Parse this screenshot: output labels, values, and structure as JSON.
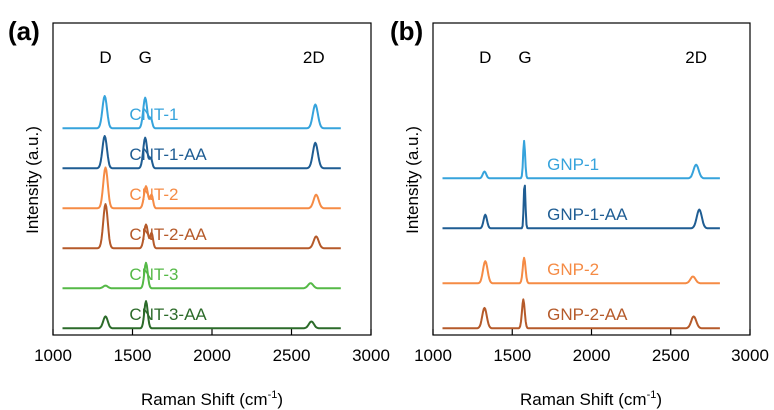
{
  "chart_data": [
    {
      "type": "line",
      "panel_label": "(a)",
      "xlabel": "Raman Shift (cm",
      "xlabel_sup": "-1",
      "xlabel_tail": ")",
      "ylabel": "Intensity (a.u.)",
      "xlim": [
        1000,
        3000
      ],
      "xticks": [
        "1000",
        "1500",
        "2000",
        "2500",
        "3000"
      ],
      "peak_labels": [
        {
          "text": "D",
          "x": 1330
        },
        {
          "text": "G",
          "x": 1580
        },
        {
          "text": "2D",
          "x": 2640
        }
      ],
      "series": [
        {
          "name": "CNT-1",
          "color": "#36a3dc",
          "offset": 5,
          "baseline": 0.05,
          "label_x": 1480,
          "peaks": [
            [
              1325,
              40,
              0.95
            ],
            [
              1580,
              35,
              0.9
            ],
            [
              1615,
              25,
              0.3
            ],
            [
              2650,
              45,
              0.7
            ]
          ]
        },
        {
          "name": "CNT-1-AA",
          "color": "#1f5d93",
          "offset": 4,
          "baseline": 0.05,
          "label_x": 1480,
          "peaks": [
            [
              1325,
              40,
              0.95
            ],
            [
              1580,
              35,
              0.9
            ],
            [
              1615,
              25,
              0.3
            ],
            [
              2650,
              45,
              0.75
            ]
          ]
        },
        {
          "name": "CNT-2",
          "color": "#f58b45",
          "offset": 3,
          "baseline": 0.05,
          "label_x": 1480,
          "peaks": [
            [
              1330,
              40,
              1.2
            ],
            [
              1585,
              35,
              0.65
            ],
            [
              1620,
              25,
              0.4
            ],
            [
              2655,
              45,
              0.4
            ]
          ]
        },
        {
          "name": "CNT-2-AA",
          "color": "#b55a2a",
          "offset": 2,
          "baseline": 0.05,
          "label_x": 1480,
          "peaks": [
            [
              1330,
              40,
              1.3
            ],
            [
              1585,
              35,
              0.7
            ],
            [
              1620,
              25,
              0.45
            ],
            [
              2655,
              45,
              0.35
            ]
          ]
        },
        {
          "name": "CNT-3",
          "color": "#55b947",
          "offset": 1,
          "baseline": 0.05,
          "label_x": 1480,
          "peaks": [
            [
              1330,
              40,
              0.08
            ],
            [
              1585,
              30,
              0.75
            ],
            [
              2620,
              45,
              0.15
            ]
          ]
        },
        {
          "name": "CNT-3-AA",
          "color": "#2c6b2a",
          "offset": 0,
          "baseline": 0.05,
          "label_x": 1480,
          "peaks": [
            [
              1330,
              40,
              0.35
            ],
            [
              1585,
              30,
              0.8
            ],
            [
              2625,
              45,
              0.2
            ]
          ]
        }
      ]
    },
    {
      "type": "line",
      "panel_label": "(b)",
      "xlabel": "Raman Shift (cm",
      "xlabel_sup": "-1",
      "xlabel_tail": ")",
      "ylabel": "Intensity (a.u.)",
      "xlim": [
        1000,
        3000
      ],
      "xticks": [
        "1000",
        "1500",
        "2000",
        "2500",
        "3000"
      ],
      "peak_labels": [
        {
          "text": "D",
          "x": 1330
        },
        {
          "text": "G",
          "x": 1580
        },
        {
          "text": "2D",
          "x": 2660
        }
      ],
      "series": [
        {
          "name": "GNP-1",
          "color": "#36a3dc",
          "offset": 3,
          "baseline": 0.05,
          "label_x": 1720,
          "peaks": [
            [
              1325,
              30,
              0.2
            ],
            [
              1575,
              18,
              1.1
            ],
            [
              2660,
              45,
              0.4
            ]
          ]
        },
        {
          "name": "GNP-1-AA",
          "color": "#1f5d93",
          "offset": 2,
          "baseline": 0.05,
          "label_x": 1720,
          "peaks": [
            [
              1330,
              30,
              0.4
            ],
            [
              1578,
              15,
              1.35
            ],
            [
              2680,
              45,
              0.55
            ]
          ]
        },
        {
          "name": "GNP-2",
          "color": "#f58b45",
          "offset": 0.9,
          "baseline": 0.05,
          "label_x": 1720,
          "peaks": [
            [
              1330,
              40,
              0.65
            ],
            [
              1575,
              25,
              0.75
            ],
            [
              2640,
              45,
              0.2
            ]
          ]
        },
        {
          "name": "GNP-2-AA",
          "color": "#b55a2a",
          "offset": 0,
          "baseline": 0.05,
          "label_x": 1720,
          "peaks": [
            [
              1325,
              40,
              0.6
            ],
            [
              1570,
              25,
              0.85
            ],
            [
              2645,
              45,
              0.35
            ]
          ]
        }
      ]
    }
  ]
}
